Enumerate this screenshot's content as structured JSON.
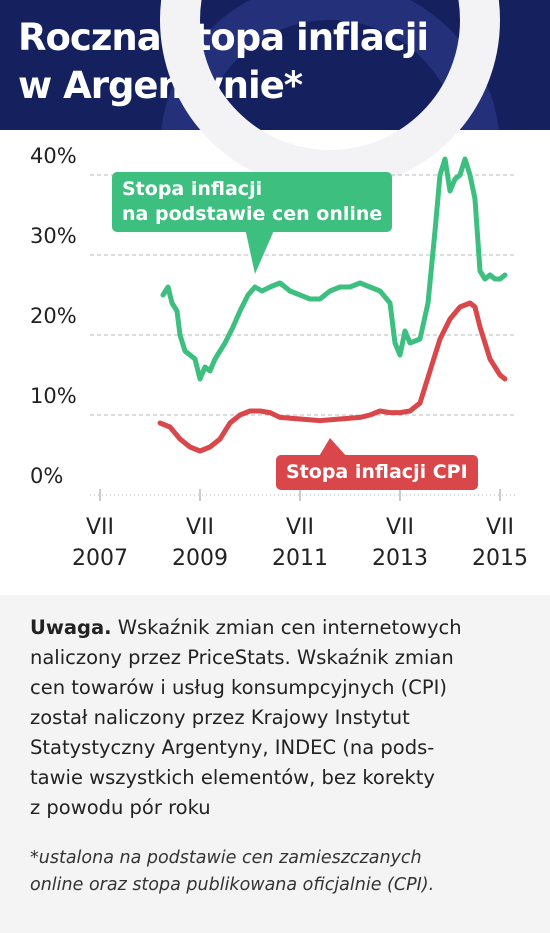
{
  "header": {
    "title": "Roczna stopa inflacji\nw Argentynie*"
  },
  "chart_data": {
    "type": "line",
    "xlim": [
      2007.3,
      2015.8
    ],
    "xticks": [
      {
        "value": 2007.5,
        "label": "VII 2007"
      },
      {
        "value": 2009.5,
        "label": "VII 2009"
      },
      {
        "value": 2011.5,
        "label": "VII 2011"
      },
      {
        "value": 2013.5,
        "label": "VII 2013"
      },
      {
        "value": 2015.5,
        "label": "VII 2015"
      }
    ],
    "ylim": [
      0,
      45
    ],
    "yticks": [
      {
        "value": 0,
        "label": "0%"
      },
      {
        "value": 10,
        "label": "10%"
      },
      {
        "value": 20,
        "label": "20%"
      },
      {
        "value": 30,
        "label": "30%"
      },
      {
        "value": 40,
        "label": "40%"
      }
    ],
    "grid": true,
    "series": [
      {
        "name": "Stopa inflacji\nna podstawie cen online",
        "color": "#3dbf80",
        "x": [
          2008.76,
          2008.86,
          2008.94,
          2009.04,
          2009.1,
          2009.2,
          2009.3,
          2009.4,
          2009.5,
          2009.6,
          2009.7,
          2009.8,
          2010.0,
          2010.16,
          2010.3,
          2010.46,
          2010.6,
          2010.74,
          2010.9,
          2011.1,
          2011.3,
          2011.5,
          2011.7,
          2011.9,
          2012.1,
          2012.3,
          2012.5,
          2012.7,
          2012.9,
          2013.1,
          2013.3,
          2013.4,
          2013.5,
          2013.6,
          2013.7,
          2013.9,
          2014.06,
          2014.2,
          2014.3,
          2014.4,
          2014.5,
          2014.6,
          2014.7,
          2014.8,
          2014.9,
          2015.0,
          2015.1,
          2015.2,
          2015.3,
          2015.4,
          2015.5,
          2015.6
        ],
        "values": [
          25,
          26,
          24,
          23,
          20,
          18,
          17.5,
          17,
          14.5,
          16,
          15.5,
          17,
          19,
          21,
          23,
          25,
          26,
          25.5,
          26,
          26.5,
          25.5,
          25,
          24.5,
          24.5,
          25.5,
          26,
          26,
          26.5,
          26,
          25.5,
          24,
          19,
          17.5,
          20.5,
          19,
          19.5,
          24,
          33,
          40,
          42,
          38,
          39.5,
          40,
          42,
          40,
          37,
          28,
          27,
          27.5,
          27,
          27,
          27.5
        ]
      },
      {
        "name": "Stopa inflacji CPI",
        "color": "#d9474a",
        "x": [
          2008.7,
          2008.9,
          2009.1,
          2009.3,
          2009.5,
          2009.7,
          2009.9,
          2010.1,
          2010.3,
          2010.5,
          2010.7,
          2010.9,
          2011.1,
          2011.5,
          2011.9,
          2012.3,
          2012.7,
          2012.9,
          2013.1,
          2013.3,
          2013.5,
          2013.7,
          2013.9,
          2014.1,
          2014.3,
          2014.5,
          2014.7,
          2014.9,
          2015.0,
          2015.1,
          2015.3,
          2015.5,
          2015.6
        ],
        "values": [
          9,
          8.5,
          7,
          6,
          5.5,
          6,
          7,
          9,
          10,
          10.5,
          10.5,
          10.3,
          9.7,
          9.5,
          9.3,
          9.5,
          9.7,
          10,
          10.5,
          10.3,
          10.3,
          10.5,
          11.5,
          15.5,
          19.5,
          22,
          23.5,
          24,
          23.5,
          21,
          17,
          15,
          14.5
        ]
      }
    ]
  },
  "note": {
    "lead": "Uwaga.",
    "text": " Wskaźnik zmian cen internetowych\nnaliczony przez PriceStats. Wskaźnik zmian\ncen towarów i usług konsumpcyjnych (CPI)\nzostał naliczony przez Krajowy Instytut\nStatystyczny Argentyny, INDEC (na pods-\ntawie wszystkich elementów, bez korekty\nz powodu pór roku"
  },
  "footnote": "*ustalona na podstawie cen zamieszczanych\nonline oraz stopa publikowana oficjalnie (CPI)."
}
